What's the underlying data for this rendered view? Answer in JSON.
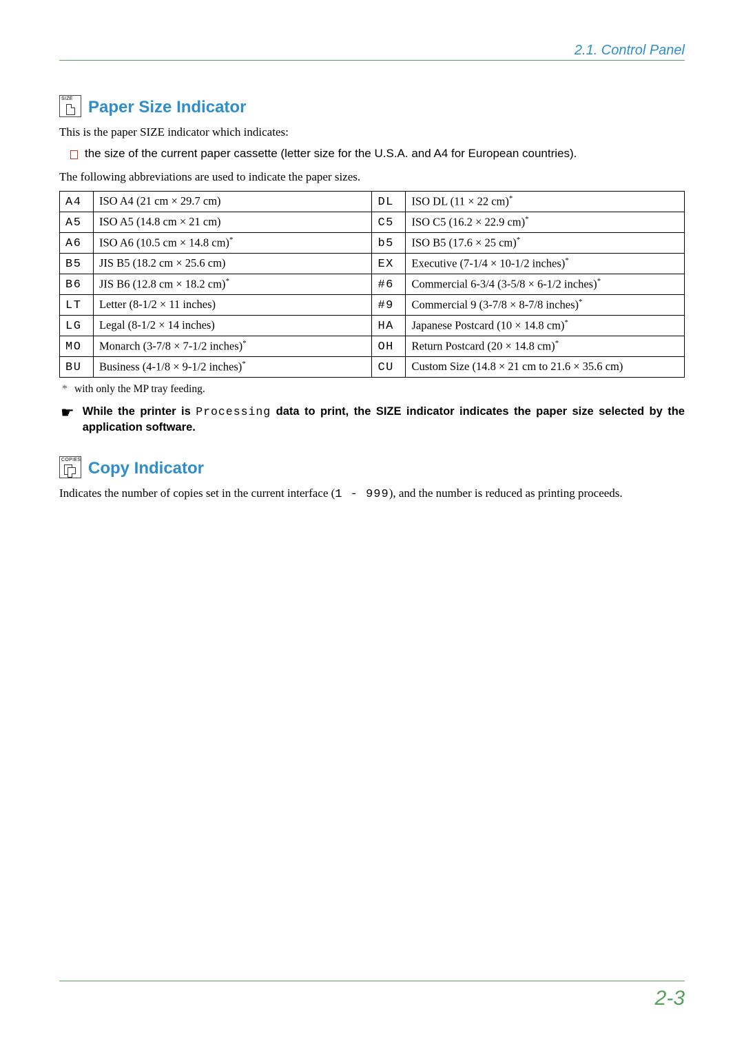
{
  "header": {
    "breadcrumb": "2.1.  Control Panel"
  },
  "section1": {
    "icon_label": "SIZE",
    "title": "Paper Size Indicator",
    "intro": "This is the paper SIZE indicator which indicates:",
    "bullet": "the size of the current paper cassette (letter size for the U.S.A. and A4 for European countries).",
    "lead2": "The following abbreviations are used to indicate the paper sizes.",
    "footnote": "with only the MP tray feeding.",
    "note_prefix": "While the printer is ",
    "note_code": "Processing",
    "note_suffix": " data to print, the SIZE indicator indicates the paper size selected by the application software."
  },
  "size_rows": [
    {
      "a": "A4",
      "ad": "ISO A4 (21 cm × 29.7 cm)",
      "af": false,
      "b": "DL",
      "bd": "ISO DL (11 × 22 cm)",
      "bf": true
    },
    {
      "a": "A5",
      "ad": "ISO A5 (14.8 cm × 21 cm)",
      "af": false,
      "b": "C5",
      "bd": "ISO C5 (16.2 × 22.9 cm)",
      "bf": true
    },
    {
      "a": "A6",
      "ad": "ISO A6 (10.5 cm × 14.8 cm)",
      "af": true,
      "b": "b5",
      "bd": "ISO B5 (17.6 × 25 cm)",
      "bf": true
    },
    {
      "a": "B5",
      "ad": "JIS B5 (18.2 cm × 25.6 cm)",
      "af": false,
      "b": "EX",
      "bd": "Executive (7-1/4 × 10-1/2 inches)",
      "bf": true
    },
    {
      "a": "B6",
      "ad": "JIS B6 (12.8 cm × 18.2 cm)",
      "af": true,
      "b": "#6",
      "bd": "Commercial 6-3/4 (3-5/8 × 6-1/2 inches)",
      "bf": true
    },
    {
      "a": "LT",
      "ad": "Letter (8-1/2 × 11 inches)",
      "af": false,
      "b": "#9",
      "bd": "Commercial 9 (3-7/8 × 8-7/8 inches)",
      "bf": true
    },
    {
      "a": "LG",
      "ad": "Legal (8-1/2 × 14 inches)",
      "af": false,
      "b": "HA",
      "bd": "Japanese Postcard (10 × 14.8 cm)",
      "bf": true
    },
    {
      "a": "MO",
      "ad": "Monarch (3-7/8 × 7-1/2 inches)",
      "af": true,
      "b": "OH",
      "bd": "Return Postcard (20 × 14.8 cm)",
      "bf": true
    },
    {
      "a": "BU",
      "ad": "Business (4-1/8 × 9-1/2 inches)",
      "af": true,
      "b": "CU",
      "bd": "Custom Size (14.8 × 21 cm to 21.6 × 35.6 cm)",
      "bf": false
    }
  ],
  "section2": {
    "icon_label": "COPIES",
    "title": "Copy Indicator",
    "body_prefix": "Indicates the number of copies set in the current interface (",
    "body_code": "1 - 999",
    "body_suffix": "), and the number is reduced as printing proceeds."
  },
  "page_number": "2-3",
  "colors": {
    "accent_blue": "#2e8ecb",
    "accent_green": "#56a05e",
    "bullet_border": "#c23a1a"
  }
}
